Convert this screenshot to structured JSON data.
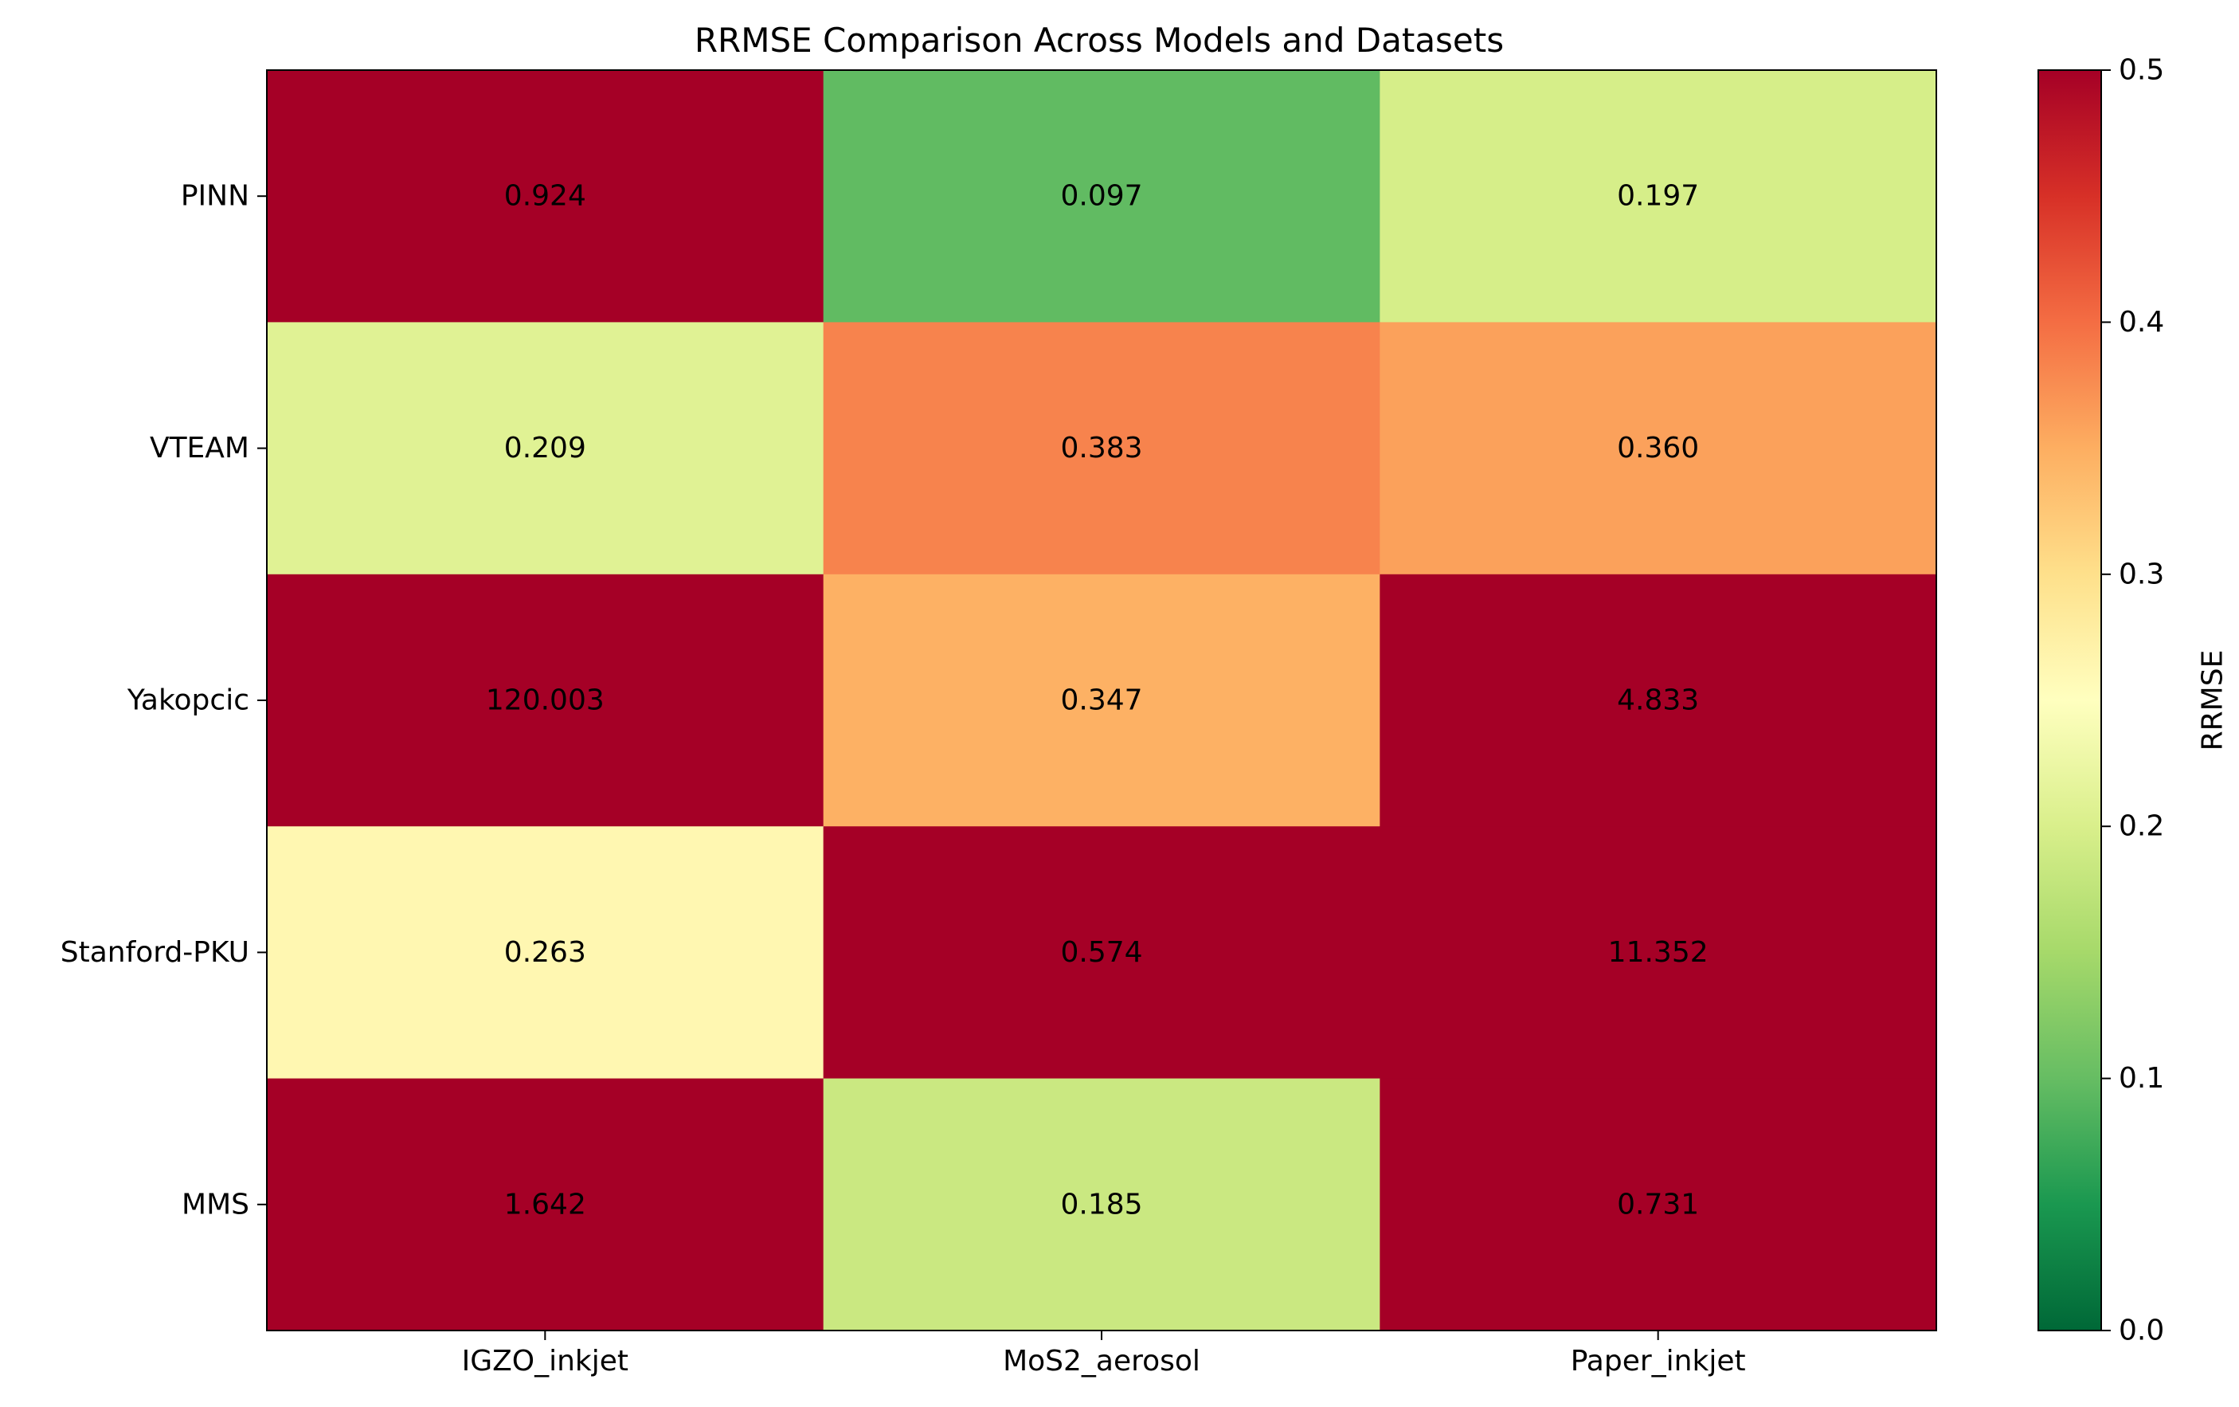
{
  "chart_data": {
    "type": "heatmap",
    "title": "RRMSE Comparison Across Models and Datasets",
    "x_categories": [
      "IGZO_inkjet",
      "MoS2_aerosol",
      "Paper_inkjet"
    ],
    "y_categories": [
      "PINN",
      "VTEAM",
      "Yakopcic",
      "Stanford-PKU",
      "MMS"
    ],
    "values": [
      [
        0.924,
        0.097,
        0.197
      ],
      [
        0.209,
        0.383,
        0.36
      ],
      [
        120.003,
        0.347,
        4.833
      ],
      [
        0.263,
        0.574,
        11.352
      ],
      [
        1.642,
        0.185,
        0.731
      ]
    ],
    "value_labels": [
      [
        "0.924",
        "0.097",
        "0.197"
      ],
      [
        "0.209",
        "0.383",
        "0.360"
      ],
      [
        "120.003",
        "0.347",
        "4.833"
      ],
      [
        "0.263",
        "0.574",
        "11.352"
      ],
      [
        "1.642",
        "0.185",
        "0.731"
      ]
    ],
    "colorbar": {
      "label": "RRMSE",
      "range": [
        0.0,
        0.5
      ],
      "ticks": [
        "0.0",
        "0.1",
        "0.2",
        "0.3",
        "0.4",
        "0.5"
      ],
      "colormap": "RdYlGn_r"
    }
  }
}
